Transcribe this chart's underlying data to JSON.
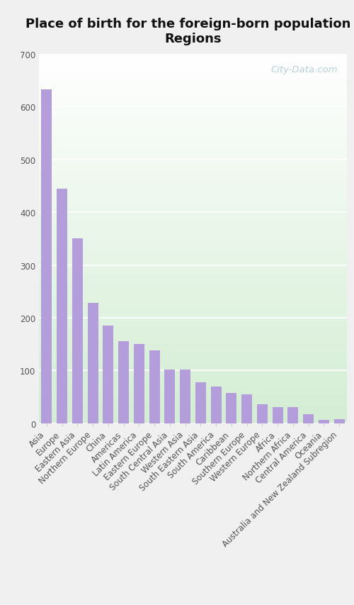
{
  "title": "Place of birth for the foreign-born population -\nRegions",
  "categories": [
    "Asia",
    "Europe",
    "Eastern Asia",
    "Northern Europe",
    "China",
    "Americas",
    "Latin America",
    "Eastern Europe",
    "South Central Asia",
    "Western Asia",
    "South Eastern Asia",
    "South America",
    "Caribbean",
    "Southern Europe",
    "Western Europe",
    "Africa",
    "Northern Africa",
    "Central America",
    "Oceania",
    "Australia and New Zealand Subregion"
  ],
  "values": [
    632,
    445,
    350,
    228,
    185,
    155,
    150,
    138,
    102,
    102,
    77,
    70,
    57,
    55,
    36,
    30,
    30,
    17,
    7,
    8
  ],
  "bar_color": "#b39ddb",
  "fig_bg_color": "#f0f0f0",
  "plot_bg_top": "#ffffff",
  "plot_bg_bottom": "#d4edda",
  "grid_color": "#ffffff",
  "ylim": [
    0,
    700
  ],
  "yticks": [
    0,
    100,
    200,
    300,
    400,
    500,
    600,
    700
  ],
  "title_fontsize": 13,
  "tick_fontsize": 8.5,
  "watermark": "City-Data.com",
  "watermark_color": "#adc8d0"
}
